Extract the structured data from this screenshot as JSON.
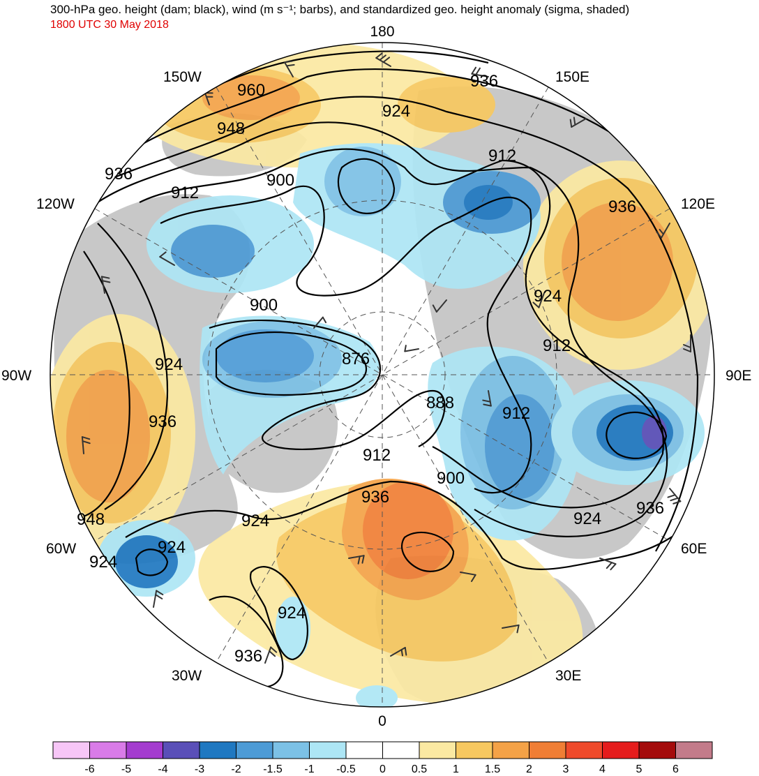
{
  "header": {
    "title": "300-hPa geo. height (dam; black), wind (m s⁻¹; barbs), and standardized geo. height anomaly (sigma, shaded)",
    "valid_time": "1800 UTC 30 May 2018"
  },
  "map": {
    "projection": "north polar stereographic",
    "longitude_labels": [
      "180",
      "150E",
      "120E",
      "90E",
      "60E",
      "30E",
      "0",
      "30W",
      "60W",
      "90W",
      "120W",
      "150W"
    ],
    "height_contour_labels": [
      "960",
      "948",
      "936",
      "924",
      "912",
      "900",
      "888",
      "876",
      "912",
      "924",
      "936",
      "924",
      "948",
      "924",
      "936",
      "924",
      "936",
      "912",
      "900",
      "924",
      "912",
      "936",
      "924",
      "936",
      "924",
      "900",
      "912",
      "936"
    ],
    "anomaly_features": [
      {
        "name": "ridge-north-pacific",
        "sigma": 1.5
      },
      {
        "name": "ridge-east-siberia",
        "sigma": 2
      },
      {
        "name": "ridge-north-america",
        "sigma": 2
      },
      {
        "name": "ridge-scandinavia",
        "sigma": 3
      },
      {
        "name": "trough-canadian-archipelago",
        "sigma": -2
      },
      {
        "name": "trough-west-siberia",
        "sigma": -2.5
      },
      {
        "name": "trough-central-siberia",
        "sigma": -4
      },
      {
        "name": "trough-labrador",
        "sigma": -3
      },
      {
        "name": "trough-east-siberian-sea",
        "sigma": -2
      }
    ]
  },
  "colorbar": {
    "labels": [
      "-6",
      "-5",
      "-4",
      "-3",
      "-2",
      "-1.5",
      "-1",
      "-0.5",
      "0",
      "0.5",
      "1",
      "1.5",
      "2",
      "3",
      "4",
      "5",
      "6"
    ],
    "colors": [
      "#f7c6f7",
      "#d97be8",
      "#a43ccf",
      "#5a4fb8",
      "#1f78c1",
      "#4d9bd6",
      "#7cc1e6",
      "#ade6f5",
      "#ffffff",
      "#ffffff",
      "#fbe9a2",
      "#f7c860",
      "#f4a247",
      "#f07e35",
      "#ef4a2b",
      "#e51c1c",
      "#a40b0b",
      "#c37b8a"
    ]
  },
  "colors": {
    "land": "#c8c8c8",
    "contour": "#000000",
    "barb": "#333333",
    "timestamp": "#e00000"
  }
}
